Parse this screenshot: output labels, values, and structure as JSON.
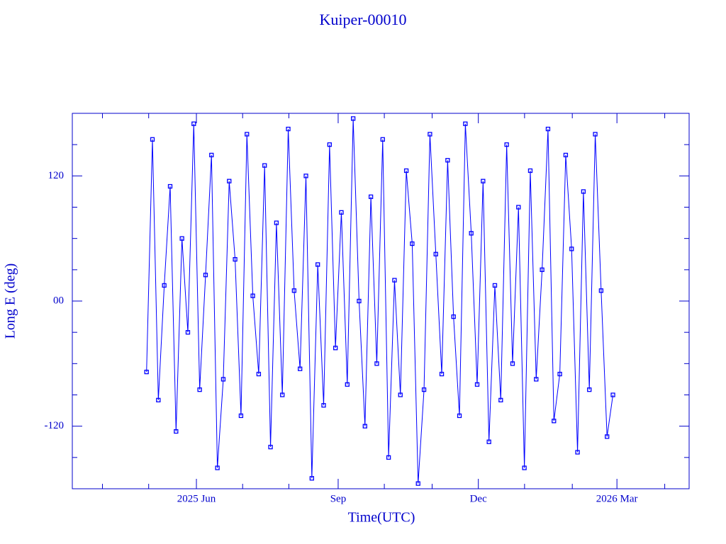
{
  "chart_data": {
    "type": "line",
    "title": "Kuiper-00010",
    "x_label": "Time(UTC)",
    "y_label": "Long E (deg)",
    "color": "#0000ff",
    "frame_color": "#0000cc",
    "markers": true,
    "xlim": [
      2025.193,
      2026.29
    ],
    "ylim": [
      -180,
      180
    ],
    "xticks": [
      {
        "value": 2025.4137,
        "label": "2025 Jun"
      },
      {
        "value": 2025.6658,
        "label": "Sep"
      },
      {
        "value": 2025.9151,
        "label": "Dec"
      },
      {
        "value": 2026.1616,
        "label": "2026 Mar"
      }
    ],
    "xminorticks": [
      2025.2466,
      2025.3288,
      2025.4959,
      2025.5781,
      2025.7479,
      2025.8329,
      2025.9973,
      2026.0822,
      2026.2466
    ],
    "yticks": [
      {
        "value": -120,
        "label": "-120"
      },
      {
        "value": 0,
        "label": "00"
      },
      {
        "value": 120,
        "label": "120"
      }
    ],
    "yminorticks": [
      -150,
      -90,
      -60,
      -30,
      30,
      60,
      90,
      150
    ],
    "x": [
      2025.325,
      2025.3355,
      2025.346,
      2025.3565,
      2025.367,
      2025.3775,
      2025.388,
      2025.3985,
      2025.409,
      2025.4195,
      2025.43,
      2025.4405,
      2025.451,
      2025.4615,
      2025.472,
      2025.4825,
      2025.493,
      2025.5035,
      2025.514,
      2025.5245,
      2025.535,
      2025.5455,
      2025.556,
      2025.5665,
      2025.577,
      2025.5875,
      2025.598,
      2025.6085,
      2025.619,
      2025.6295,
      2025.64,
      2025.6505,
      2025.661,
      2025.6715,
      2025.682,
      2025.6925,
      2025.703,
      2025.7135,
      2025.724,
      2025.7345,
      2025.745,
      2025.7555,
      2025.766,
      2025.7765,
      2025.787,
      2025.7975,
      2025.808,
      2025.8185,
      2025.829,
      2025.8395,
      2025.85,
      2025.8605,
      2025.871,
      2025.8815,
      2025.892,
      2025.9025,
      2025.913,
      2025.9235,
      2025.934,
      2025.9445,
      2025.955,
      2025.9655,
      2025.976,
      2025.9865,
      2025.997,
      2026.0075,
      2026.018,
      2026.0285,
      2026.039,
      2026.0495,
      2026.06,
      2026.0705,
      2026.081,
      2026.0915,
      2026.102,
      2026.1125,
      2026.123,
      2026.1335,
      2026.144,
      2026.1545
    ],
    "values": [
      -68,
      155,
      -95,
      15,
      110,
      -125,
      60,
      -30,
      170,
      -85,
      25,
      140,
      -160,
      -75,
      115,
      40,
      -110,
      160,
      5,
      -70,
      130,
      -140,
      75,
      -90,
      165,
      10,
      -65,
      120,
      -170,
      35,
      -100,
      150,
      -45,
      85,
      -80,
      175,
      0,
      -120,
      100,
      -60,
      155,
      -150,
      20,
      -90,
      125,
      55,
      -175,
      -85,
      160,
      45,
      -70,
      135,
      -15,
      -110,
      170,
      65,
      -80,
      115,
      -135,
      15,
      -95,
      150,
      -60,
      90,
      -160,
      125,
      -75,
      30,
      165,
      -115,
      -70,
      140,
      50,
      -145,
      105,
      -85,
      160,
      10,
      -130,
      -90
    ]
  }
}
